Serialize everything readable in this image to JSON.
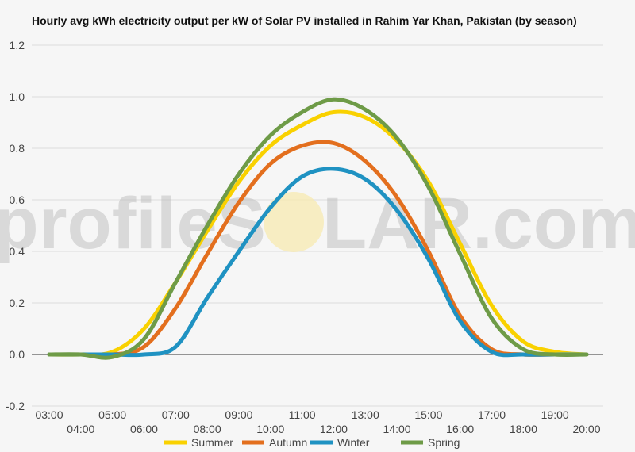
{
  "watermark": {
    "left": "profileS",
    "right": "LAR.com"
  },
  "chart_data": {
    "type": "line",
    "title": "Hourly avg kWh electricity output per kW of Solar PV installed in Rahim Yar Khan, Pakistan (by season)",
    "xlabel": "",
    "ylabel": "",
    "x": [
      "03:00",
      "04:00",
      "05:00",
      "06:00",
      "07:00",
      "08:00",
      "09:00",
      "10:00",
      "11:00",
      "12:00",
      "13:00",
      "14:00",
      "15:00",
      "16:00",
      "17:00",
      "18:00",
      "19:00",
      "20:00"
    ],
    "ylim": [
      -0.2,
      1.2
    ],
    "yticks": [
      -0.2,
      0.0,
      0.2,
      0.4,
      0.6,
      0.8,
      1.0,
      1.2
    ],
    "grid": true,
    "legend": "bottom",
    "series": [
      {
        "name": "Summer",
        "color": "#f9d100",
        "values": [
          0,
          0,
          0.01,
          0.1,
          0.28,
          0.48,
          0.67,
          0.81,
          0.89,
          0.94,
          0.92,
          0.83,
          0.67,
          0.43,
          0.19,
          0.05,
          0.01,
          0
        ]
      },
      {
        "name": "Autumn",
        "color": "#e36f1e",
        "values": [
          0,
          0,
          0,
          0.03,
          0.18,
          0.39,
          0.59,
          0.74,
          0.81,
          0.82,
          0.75,
          0.61,
          0.4,
          0.15,
          0.02,
          0,
          0,
          0
        ]
      },
      {
        "name": "Winter",
        "color": "#1f92c2",
        "values": [
          0,
          0,
          0,
          0,
          0.03,
          0.22,
          0.4,
          0.57,
          0.69,
          0.72,
          0.68,
          0.56,
          0.37,
          0.13,
          0.01,
          0,
          0,
          0
        ]
      },
      {
        "name": "Spring",
        "color": "#6e9b47",
        "values": [
          0,
          0,
          -0.01,
          0.06,
          0.28,
          0.5,
          0.7,
          0.85,
          0.94,
          0.99,
          0.95,
          0.84,
          0.65,
          0.39,
          0.14,
          0.02,
          0,
          0
        ]
      }
    ]
  }
}
